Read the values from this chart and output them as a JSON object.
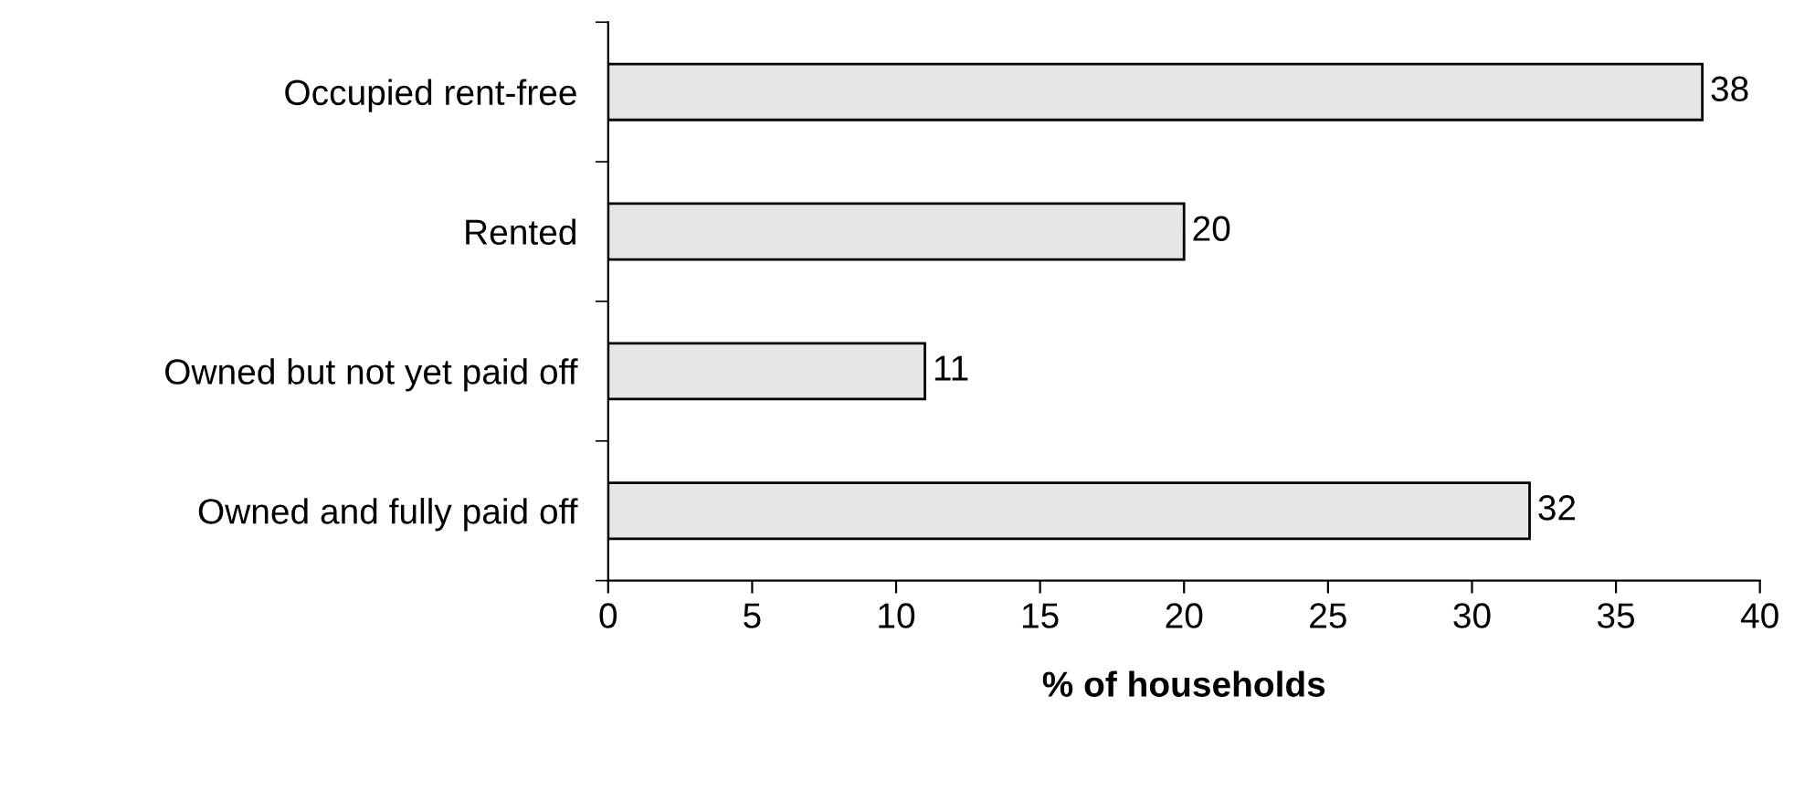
{
  "chart_data": {
    "type": "bar",
    "orientation": "horizontal",
    "xlabel": "% of households",
    "categories": [
      "Occupied rent-free",
      "Rented",
      "Owned but not yet paid off",
      "Owned and fully paid off"
    ],
    "values": [
      38,
      20,
      11,
      32
    ],
    "color": "#e6e6e6",
    "xlim": [
      0,
      40
    ],
    "xticks": [
      0,
      5,
      10,
      15,
      20,
      25,
      30,
      35,
      40
    ],
    "grid": false,
    "data_labels": true
  }
}
